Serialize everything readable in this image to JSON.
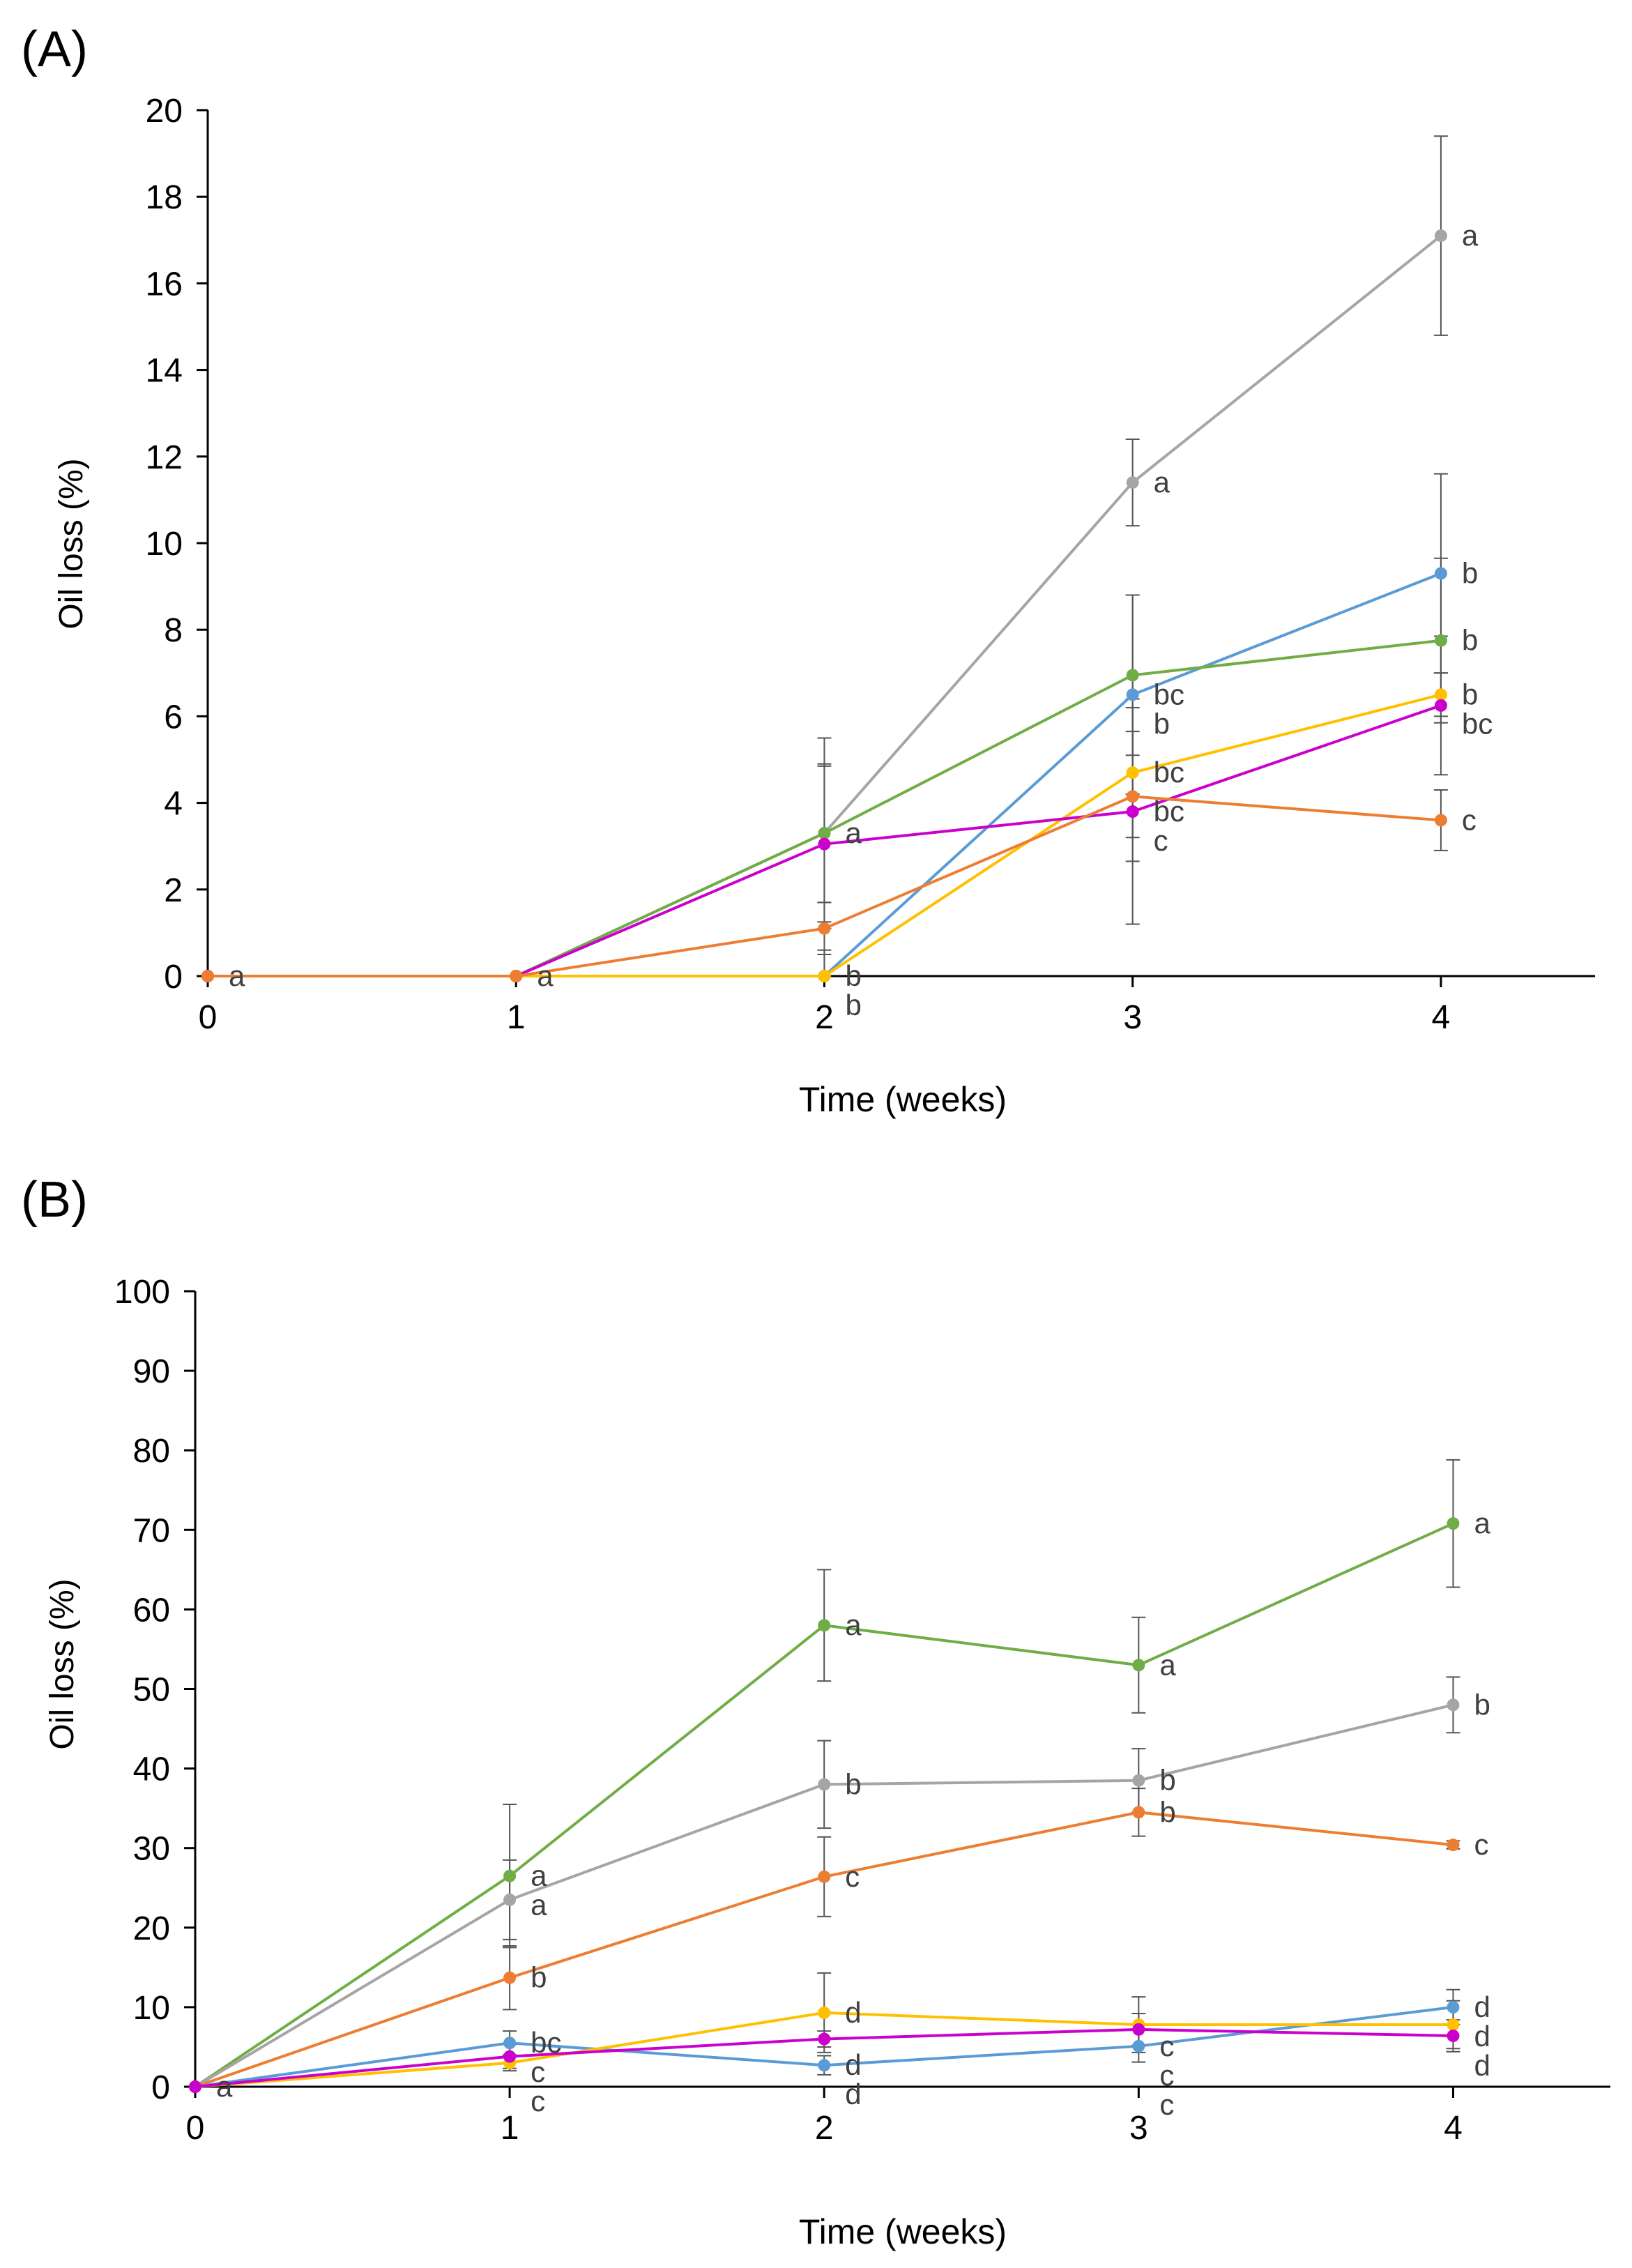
{
  "chart_data": [
    {
      "panel_label": "(A)",
      "type": "line",
      "xlabel": "Time (weeks)",
      "ylabel": "Oil loss (%)",
      "x": [
        0,
        1,
        2,
        3,
        4
      ],
      "xlim": [
        0,
        4.5
      ],
      "ylim": [
        0,
        20
      ],
      "y_ticks": [
        0,
        2,
        4,
        6,
        8,
        10,
        12,
        14,
        16,
        18,
        20
      ],
      "x_ticks": [
        0,
        1,
        2,
        3,
        4
      ],
      "grid": false,
      "series": [
        {
          "name": "grey",
          "color": "#a5a5a5",
          "values": [
            0,
            0,
            3.3,
            11.4,
            17.1
          ],
          "errors": [
            0,
            0,
            1.6,
            1.0,
            2.3
          ],
          "letters": [
            "",
            "",
            "",
            "a",
            "a"
          ]
        },
        {
          "name": "blue",
          "color": "#5b9bd5",
          "values": [
            0,
            0,
            0,
            6.5,
            9.3
          ],
          "errors": [
            0,
            0,
            0.6,
            2.3,
            2.3
          ],
          "letters": [
            "",
            "",
            "b",
            "bc",
            "b"
          ]
        },
        {
          "name": "green",
          "color": "#70ad47",
          "values": [
            0,
            0,
            3.3,
            6.95,
            7.75
          ],
          "errors": [
            0,
            0,
            2.2,
            1.85,
            1.9
          ],
          "letters": [
            "a",
            "a",
            "a",
            "b",
            "b"
          ]
        },
        {
          "name": "yellow",
          "color": "#ffc000",
          "values": [
            0,
            0,
            0,
            4.7,
            6.5
          ],
          "errors": [
            0,
            0,
            0.5,
            1.5,
            0.5
          ],
          "letters": [
            "",
            "",
            "b",
            "bc",
            "b"
          ]
        },
        {
          "name": "magenta",
          "color": "#cc00cc",
          "values": [
            0,
            0,
            3.05,
            3.8,
            6.25
          ],
          "errors": [
            0,
            0,
            1.8,
            2.6,
            1.6
          ],
          "letters": [
            "",
            "",
            "",
            "bc",
            "bc"
          ]
        },
        {
          "name": "orange",
          "color": "#ed7d31",
          "values": [
            0,
            0,
            1.1,
            4.15,
            3.6
          ],
          "errors": [
            0,
            0,
            0.6,
            1.5,
            0.7
          ],
          "letters": [
            "",
            "",
            "",
            "c",
            "c"
          ]
        }
      ]
    },
    {
      "panel_label": "(B)",
      "type": "line",
      "xlabel": "Time (weeks)",
      "ylabel": "Oil loss (%)",
      "x": [
        0,
        1,
        2,
        3,
        4
      ],
      "xlim": [
        0,
        4.5
      ],
      "ylim": [
        0,
        100
      ],
      "y_ticks": [
        0,
        10,
        20,
        30,
        40,
        50,
        60,
        70,
        80,
        90,
        100
      ],
      "x_ticks": [
        0,
        1,
        2,
        3,
        4
      ],
      "grid": false,
      "series": [
        {
          "name": "green",
          "color": "#70ad47",
          "values": [
            0,
            26.5,
            58,
            53,
            70.8
          ],
          "errors": [
            0,
            9,
            7,
            6,
            8
          ],
          "letters": [
            "a",
            "a",
            "a",
            "a",
            "a"
          ]
        },
        {
          "name": "grey",
          "color": "#a5a5a5",
          "values": [
            0,
            23.5,
            38,
            38.5,
            48
          ],
          "errors": [
            0,
            5,
            5.5,
            4,
            3.5
          ],
          "letters": [
            "",
            "a",
            "b",
            "b",
            "b"
          ]
        },
        {
          "name": "orange",
          "color": "#ed7d31",
          "values": [
            0,
            13.7,
            26.4,
            34.5,
            30.4
          ],
          "errors": [
            0,
            4,
            5,
            3,
            0.5
          ],
          "letters": [
            "",
            "b",
            "c",
            "b",
            "c"
          ]
        },
        {
          "name": "blue",
          "color": "#5b9bd5",
          "values": [
            0,
            5.5,
            2.7,
            5.1,
            10
          ],
          "errors": [
            0,
            1.5,
            1.2,
            2.0,
            2.2
          ],
          "letters": [
            "",
            "bc",
            "d",
            "c",
            "d"
          ]
        },
        {
          "name": "yellow",
          "color": "#ffc000",
          "values": [
            0,
            3,
            9.3,
            7.8,
            7.8
          ],
          "errors": [
            0,
            1,
            5,
            3.5,
            3
          ],
          "letters": [
            "",
            "c",
            "d",
            "c",
            "d"
          ]
        },
        {
          "name": "magenta",
          "color": "#cc00cc",
          "values": [
            0,
            3.8,
            6,
            7.2,
            6.4
          ],
          "errors": [
            0,
            1.5,
            1,
            2,
            2
          ],
          "letters": [
            "",
            "c",
            "d",
            "c",
            "d"
          ]
        }
      ]
    }
  ]
}
